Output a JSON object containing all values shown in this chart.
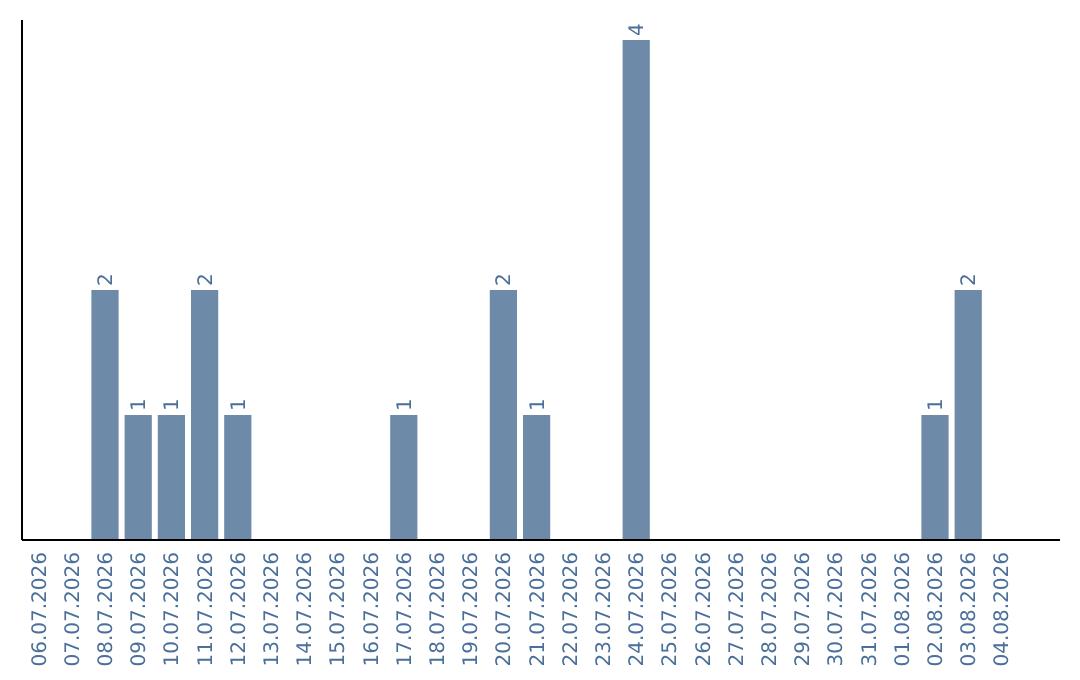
{
  "chart_data": {
    "type": "bar",
    "categories": [
      "06.07.2026",
      "07.07.2026",
      "08.07.2026",
      "09.07.2026",
      "10.07.2026",
      "11.07.2026",
      "12.07.2026",
      "13.07.2026",
      "14.07.2026",
      "15.07.2026",
      "16.07.2026",
      "17.07.2026",
      "18.07.2026",
      "19.07.2026",
      "20.07.2026",
      "21.07.2026",
      "22.07.2026",
      "23.07.2026",
      "24.07.2026",
      "25.07.2026",
      "26.07.2026",
      "27.07.2026",
      "28.07.2026",
      "29.07.2026",
      "30.07.2026",
      "31.07.2026",
      "01.08.2026",
      "02.08.2026",
      "03.08.2026",
      "04.08.2026"
    ],
    "values": [
      0,
      0,
      2,
      1,
      1,
      2,
      1,
      0,
      0,
      0,
      0,
      1,
      0,
      0,
      2,
      1,
      0,
      0,
      4,
      0,
      0,
      0,
      0,
      0,
      0,
      0,
      0,
      1,
      2,
      0
    ],
    "value_labels": [
      null,
      null,
      "2",
      "1",
      "1",
      "2",
      "1",
      null,
      null,
      null,
      null,
      "1",
      null,
      null,
      "2",
      "1",
      null,
      null,
      "4",
      null,
      null,
      null,
      null,
      null,
      null,
      null,
      null,
      "1",
      "2",
      null
    ],
    "color": "#6d8aa8",
    "tick_labels": "x"
  }
}
